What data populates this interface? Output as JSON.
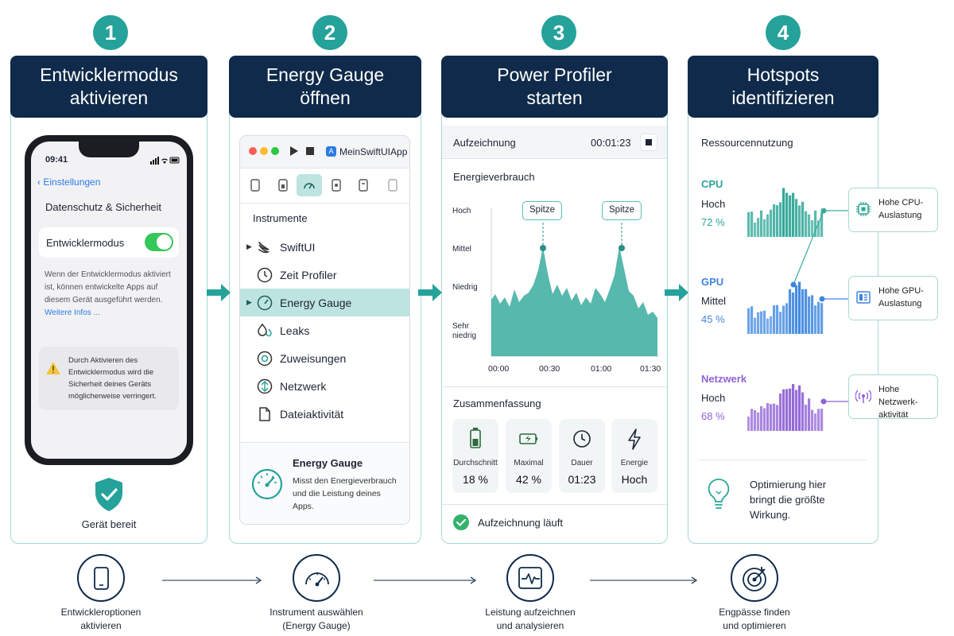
{
  "steps": [
    {
      "number": "1",
      "title_line1": "Entwicklermodus",
      "title_line2": "aktivieren"
    },
    {
      "number": "2",
      "title_line1": "Energy Gauge",
      "title_line2": "öffnen"
    },
    {
      "number": "3",
      "title_line1": "Power Profiler",
      "title_line2": "starten"
    },
    {
      "number": "4",
      "title_line1": "Hotspots",
      "title_line2": "identifizieren"
    }
  ],
  "phone": {
    "time": "09:41",
    "back_label": "Einstellungen",
    "section_title": "Datenschutz & Sicherheit",
    "toggle_label": "Entwicklermodus",
    "toggle_on": true,
    "description": "Wenn der Entwicklermodus aktiviert ist, können entwickelte Apps auf diesem Gerät ausgeführt werden.",
    "more_link": "Weitere Infos ...",
    "warning": "Durch Aktivieren des Entwicklermodus wird die Sicherheit deines Geräts möglicherweise verringert."
  },
  "device_ready": "Gerät bereit",
  "instruments": {
    "app_name": "MeinSwiftUIApp",
    "heading": "Instrumente",
    "items": [
      {
        "label": "SwiftUI",
        "icon": "swift-icon"
      },
      {
        "label": "Zeit Profiler",
        "icon": "clock-icon"
      },
      {
        "label": "Energy Gauge",
        "icon": "gauge-icon",
        "selected": true
      },
      {
        "label": "Leaks",
        "icon": "drops-icon"
      },
      {
        "label": "Zuweisungen",
        "icon": "allocations-icon"
      },
      {
        "label": "Netzwerk",
        "icon": "network-icon"
      },
      {
        "label": "Dateiaktivität",
        "icon": "file-icon"
      }
    ],
    "info_title": "Energy Gauge",
    "info_text": "Misst den Energieverbrauch und die Leistung deines Apps."
  },
  "profiler": {
    "recording_label": "Aufzeichnung",
    "timer": "00:01:23",
    "chart_title": "Energieverbrauch",
    "y_levels": [
      "Hoch",
      "Mittel",
      "Niedrig",
      "Sehr niedrig"
    ],
    "x_ticks": [
      "00:00",
      "00:30",
      "01:00",
      "01:30"
    ],
    "peak_label": "Spitze",
    "summary_title": "Zusammenfassung",
    "stats": [
      {
        "label": "Durchschnitt",
        "value": "18 %",
        "icon": "battery-icon"
      },
      {
        "label": "Maximal",
        "value": "42 %",
        "icon": "battery-charge-icon"
      },
      {
        "label": "Dauer",
        "value": "01:23",
        "icon": "clock-icon"
      },
      {
        "label": "Energie",
        "value": "Hoch",
        "icon": "bolt-icon"
      }
    ],
    "status": "Aufzeichnung läuft"
  },
  "hotspots": {
    "title": "Ressourcennutzung",
    "resources": [
      {
        "name": "CPU",
        "level": "Hoch",
        "percent": "72 %",
        "color": "#2ba596",
        "card": "Hohe CPU-Auslastung",
        "card_l1": "Hohe CPU-",
        "card_l2": "Auslastung"
      },
      {
        "name": "GPU",
        "level": "Mittel",
        "percent": "45 %",
        "color": "#3d86e0",
        "card": "Hohe GPU-Auslastung",
        "card_l1": "Hohe GPU-",
        "card_l2": "Auslastung"
      },
      {
        "name": "Netzwerk",
        "level": "Hoch",
        "percent": "68 %",
        "color": "#8f62d6",
        "card": "Hohe Netzwerkaktivität",
        "card_l1": "Hohe Netzwerk-",
        "card_l2": "aktivität"
      }
    ],
    "tip_l1": "Optimierung hier",
    "tip_l2": "bringt die größte",
    "tip_l3": "Wirkung."
  },
  "bottom": [
    {
      "l1": "Entwickleroptionen",
      "l2": "aktivieren",
      "icon": "phone-icon"
    },
    {
      "l1": "Instrument auswählen",
      "l2": "(Energy Gauge)",
      "icon": "gauge-icon"
    },
    {
      "l1": "Leistung aufzeichnen",
      "l2": "und analysieren",
      "icon": "waveform-icon"
    },
    {
      "l1": "Engpässe finden",
      "l2": "und optimieren",
      "icon": "target-icon"
    }
  ],
  "colors": {
    "navy": "#0f2a4a",
    "teal": "#25a29a",
    "toggle": "#34c759"
  }
}
